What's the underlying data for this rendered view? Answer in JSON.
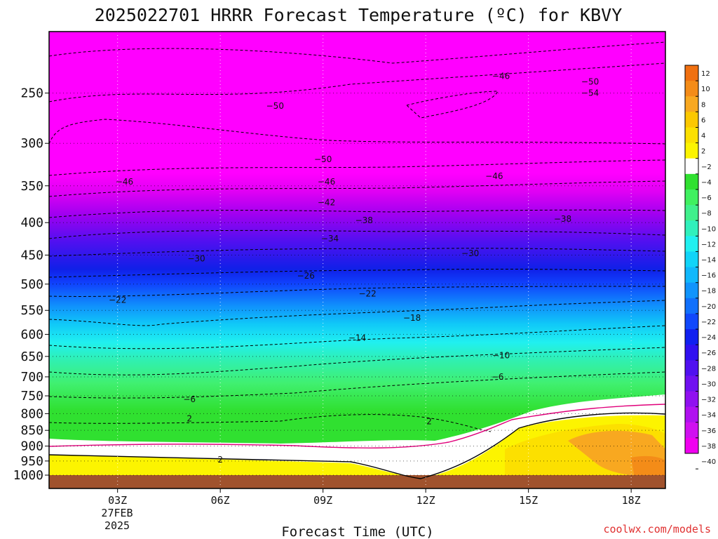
{
  "chart_data": {
    "type": "heatmap",
    "title": "2025022701 HRRR Forecast Temperature (ºC) for KBVY",
    "xlabel": "Forecast Time (UTC)",
    "ylabel": "",
    "credit": "coolwx.com/models",
    "date_label": [
      "27FEB",
      "2025"
    ],
    "x_range_hours": [
      1,
      19
    ],
    "x_ticks": [
      {
        "hour": 3,
        "label": "03Z"
      },
      {
        "hour": 6,
        "label": "06Z"
      },
      {
        "hour": 9,
        "label": "09Z"
      },
      {
        "hour": 12,
        "label": "12Z"
      },
      {
        "hour": 15,
        "label": "15Z"
      },
      {
        "hour": 18,
        "label": "18Z"
      }
    ],
    "y_axis": "pressure (hPa), inverted, log scale",
    "y_range": [
      1000,
      200
    ],
    "y_ticks": [
      250,
      300,
      350,
      400,
      450,
      500,
      550,
      600,
      650,
      700,
      750,
      800,
      850,
      900,
      950,
      1000
    ],
    "colorbar": {
      "labels": [
        12,
        10,
        8,
        6,
        4,
        2,
        -2,
        -4,
        -6,
        -8,
        -10,
        -12,
        -14,
        -16,
        -18,
        -20,
        -22,
        -24,
        -26,
        -28,
        -30,
        -32,
        -34,
        -36,
        -38,
        -40
      ],
      "colors": [
        "#f07010",
        "#f48c18",
        "#f8a820",
        "#fcc800",
        "#fce000",
        "#fcf400",
        "#ffffff",
        "#30e030",
        "#40f060",
        "#40f08c",
        "#30f0bc",
        "#20f0f0",
        "#10d4f8",
        "#10b8fc",
        "#1094fc",
        "#1070fc",
        "#1048fc",
        "#1020f0",
        "#3010f0",
        "#5010f0",
        "#7010f0",
        "#9010f0",
        "#b010f0",
        "#d010f0",
        "#f000f0"
      ]
    },
    "contours": [
      {
        "value": -46,
        "hour": 14.2,
        "pressure": 235
      },
      {
        "value": -50,
        "hour": 16.8,
        "pressure": 240
      },
      {
        "value": -54,
        "hour": 16.8,
        "pressure": 250
      },
      {
        "value": -50,
        "hour": 7.6,
        "pressure": 262
      },
      {
        "value": -50,
        "hour": 9.0,
        "pressure": 318
      },
      {
        "value": -46,
        "hour": 3.2,
        "pressure": 345
      },
      {
        "value": -46,
        "hour": 9.1,
        "pressure": 345
      },
      {
        "value": -46,
        "hour": 14.0,
        "pressure": 338
      },
      {
        "value": -42,
        "hour": 9.1,
        "pressure": 372
      },
      {
        "value": -38,
        "hour": 10.2,
        "pressure": 397
      },
      {
        "value": -38,
        "hour": 16.0,
        "pressure": 395
      },
      {
        "value": -34,
        "hour": 9.2,
        "pressure": 424
      },
      {
        "value": -30,
        "hour": 5.3,
        "pressure": 456
      },
      {
        "value": -30,
        "hour": 13.3,
        "pressure": 447
      },
      {
        "value": -26,
        "hour": 8.5,
        "pressure": 485
      },
      {
        "value": -22,
        "hour": 3.0,
        "pressure": 530
      },
      {
        "value": -22,
        "hour": 10.3,
        "pressure": 518
      },
      {
        "value": -18,
        "hour": 11.6,
        "pressure": 565
      },
      {
        "value": -14,
        "hour": 10.0,
        "pressure": 608
      },
      {
        "value": -10,
        "hour": 14.2,
        "pressure": 648
      },
      {
        "value": -6,
        "hour": 14.1,
        "pressure": 700
      },
      {
        "value": -6,
        "hour": 5.1,
        "pressure": 760
      },
      {
        "value": 2,
        "hour": 5.1,
        "pressure": 815
      },
      {
        "value": 2,
        "hour": 12.1,
        "pressure": 823
      },
      {
        "value": 2,
        "hour": 6.0,
        "pressure": 945
      }
    ]
  }
}
